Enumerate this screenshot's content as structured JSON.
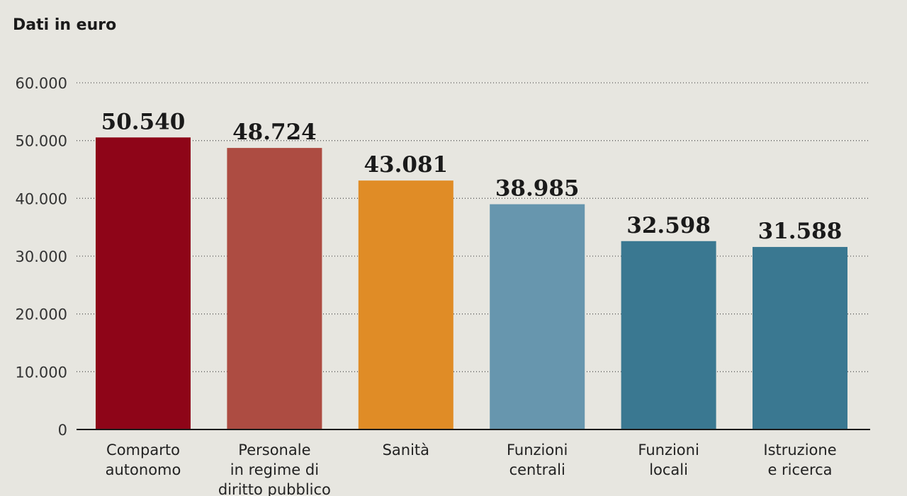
{
  "header": {
    "subtitle": "Dati in euro"
  },
  "chart_data": {
    "type": "bar",
    "categories": [
      [
        "Comparto",
        "autonomo"
      ],
      [
        "Personale",
        "in regime di",
        "diritto pubblico"
      ],
      [
        "Sanità"
      ],
      [
        "Funzioni",
        "centrali"
      ],
      [
        "Funzioni",
        "locali"
      ],
      [
        "Istruzione",
        "e ricerca"
      ]
    ],
    "values": [
      50540,
      48724,
      43081,
      38985,
      32598,
      31588
    ],
    "value_labels": [
      "50.540",
      "48.724",
      "43.081",
      "38.985",
      "32.598",
      "31.588"
    ],
    "colors": [
      "#8e0518",
      "#ad4c42",
      "#e08c26",
      "#6796ae",
      "#3a7891",
      "#3a7891"
    ],
    "ylim": [
      0,
      60000
    ],
    "yticks": [
      0,
      10000,
      20000,
      30000,
      40000,
      50000,
      60000
    ],
    "ytick_labels": [
      "0",
      "10.000",
      "20.000",
      "30.000",
      "40.000",
      "50.000",
      "60.000"
    ],
    "grid": true,
    "xlabel": "",
    "ylabel": ""
  }
}
